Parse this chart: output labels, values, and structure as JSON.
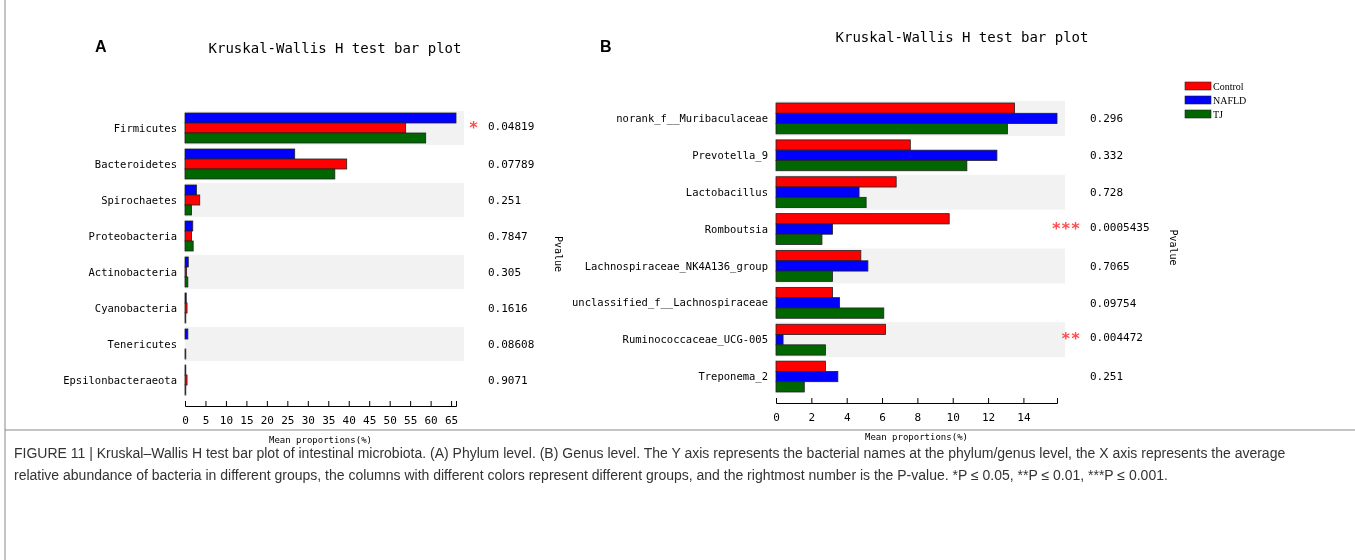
{
  "chart_data": [
    {
      "type": "bar",
      "orientation": "horizontal",
      "title": "Kruskal-Wallis H test bar plot",
      "xlabel": "Mean proportions(%)",
      "y2label": "Pvalue",
      "categories": [
        "Firmicutes",
        "Bacteroidetes",
        "Spirochaetes",
        "Proteobacteria",
        "Actinobacteria",
        "Cyanobacteria",
        "Tenericutes",
        "Epsilonbacteraeota"
      ],
      "series": [
        {
          "color": "#0000ff",
          "values": [
            66.2,
            26.8,
            2.8,
            1.9,
            0.8,
            0.3,
            0.7,
            0.2
          ]
        },
        {
          "color": "#ff0000",
          "values": [
            53.9,
            39.5,
            3.6,
            1.6,
            0.4,
            0.5,
            null,
            0.5
          ]
        },
        {
          "color": "#006600",
          "values": [
            58.8,
            36.6,
            1.6,
            2.0,
            0.7,
            0.2,
            0.2,
            0.2
          ]
        }
      ],
      "xlim": [
        0,
        66.2
      ],
      "xticks": [
        0,
        5,
        10,
        15,
        20,
        25,
        30,
        35,
        40,
        45,
        50,
        55,
        60,
        65
      ],
      "grid": false,
      "legend": false,
      "annotations": [
        "A",
        "* 0.04819",
        "0.07789",
        "0.251",
        "0.7847",
        "0.305",
        "0.1616",
        "0.08608",
        "0.9071"
      ]
    },
    {
      "type": "bar",
      "orientation": "horizontal",
      "title": "Kruskal-Wallis H test bar plot",
      "xlabel": "Mean proportions(%)",
      "y2label": "Pvalue",
      "categories": [
        "norank_f__Muribaculaceae",
        "Prevotella_9",
        "Lactobacillus",
        "Romboutsia",
        "Lachnospiraceae_NK4A136_group",
        "unclassified_f__Lachnospiraceae",
        "Ruminococcaceae_UCG-005",
        "Treponema_2"
      ],
      "series": [
        {
          "name": "Control",
          "color": "#ff0000",
          "values": [
            13.5,
            7.6,
            6.8,
            9.8,
            4.8,
            3.2,
            6.2,
            2.8
          ]
        },
        {
          "name": "NAFLD",
          "color": "#0000ff",
          "values": [
            15.9,
            12.5,
            4.7,
            3.2,
            5.2,
            3.6,
            0.4,
            3.5
          ]
        },
        {
          "name": "TJ",
          "color": "#006600",
          "values": [
            13.1,
            10.8,
            5.1,
            2.6,
            3.2,
            6.1,
            2.8,
            1.6
          ]
        }
      ],
      "xlim": [
        0,
        15.9
      ],
      "xticks": [
        0,
        2,
        4,
        6,
        8,
        10,
        12,
        14
      ],
      "grid": false,
      "legend": "top right",
      "annotations": [
        "B",
        "0.296",
        "0.332",
        "0.728",
        "*** 0.0005435",
        "0.7065",
        "0.09754",
        "** 0.004472",
        "0.251",
        "FIGURE 11 | Kruskal–Wallis H test bar plot of intestinal microbiota. (A) Phylum level. (B) Genus level. The Y axis represents the bacterial names at the phylum/genus level, the X axis represents the average relative abundance of bacteria in different groups, the columns with different colors represent different groups, and the rightmost number is the P-value. *P ≤ 0.05, **P ≤ 0.01, ***P ≤ 0.001."
      ]
    }
  ]
}
